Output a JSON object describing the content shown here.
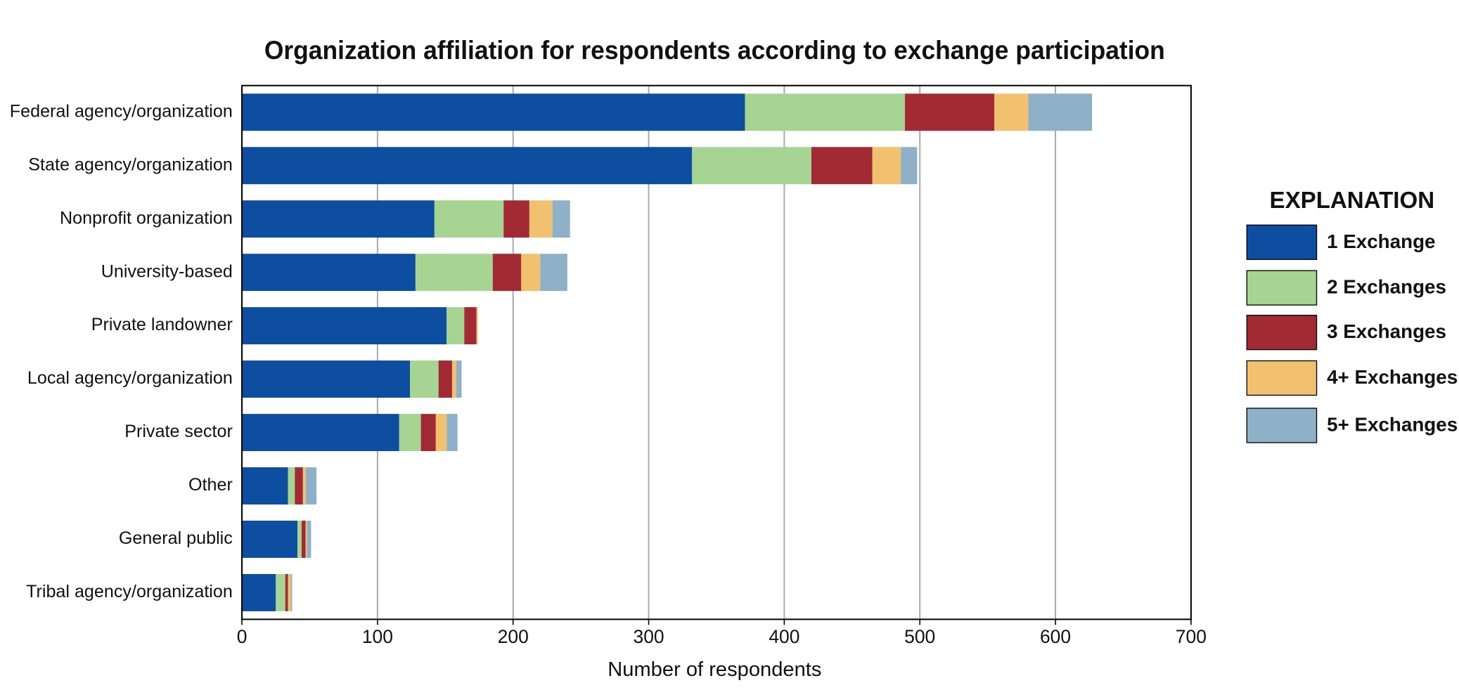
{
  "chart_data": {
    "type": "stacked_barh",
    "title": "Organization affiliation for respondents according to exchange participation",
    "x_label": "Number of respondents",
    "legend_title": "EXPLANATION",
    "categories": [
      "Federal agency/organization",
      "State agency/organization",
      "Nonprofit organization",
      "University-based",
      "Private landowner",
      "Local agency/organization",
      "Private sector",
      "Other",
      "General public",
      "Tribal agency/organization"
    ],
    "series": [
      {
        "name": "1 Exchange",
        "color": "#0d4ea1",
        "values": [
          371,
          332,
          142,
          128,
          151,
          124,
          116,
          34,
          41,
          25
        ]
      },
      {
        "name": "2 Exchanges",
        "color": "#a6d492",
        "values": [
          118,
          88,
          51,
          57,
          13,
          21,
          16,
          5,
          3,
          7
        ]
      },
      {
        "name": "3 Exchanges",
        "color": "#a22a35",
        "values": [
          66,
          45,
          19,
          21,
          9,
          10,
          11,
          6,
          3,
          2
        ]
      },
      {
        "name": "4+ Exchanges",
        "color": "#f2c170",
        "values": [
          25,
          21,
          17,
          14,
          1,
          3,
          8,
          2,
          1,
          2
        ]
      },
      {
        "name": "5+ Exchanges",
        "color": "#8fb1c8",
        "values": [
          47,
          12,
          13,
          20,
          0,
          4,
          8,
          8,
          3,
          1
        ]
      }
    ],
    "xlim": [
      0,
      700
    ],
    "xticks": [
      0,
      100,
      200,
      300,
      400,
      500,
      600,
      700
    ],
    "grid": true,
    "legend": "right"
  }
}
